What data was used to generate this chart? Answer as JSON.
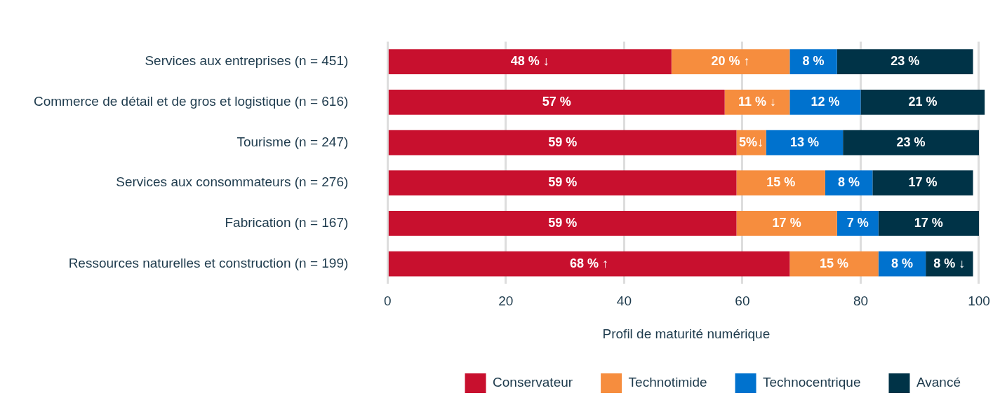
{
  "chart_data": {
    "type": "bar",
    "orientation": "horizontal",
    "stacked": true,
    "categories": [
      "Services aux entreprises (n = 451)",
      "Commerce de détail et de gros et logistique (n = 616)",
      "Tourisme (n = 247)",
      "Services aux consommateurs (n = 276)",
      "Fabrication (n = 167)",
      "Ressources naturelles et construction (n = 199)"
    ],
    "series": [
      {
        "name": "Conservateur",
        "color": "#c8102e",
        "values": [
          48,
          57,
          59,
          59,
          59,
          68
        ],
        "value_labels": [
          "48 % ↓",
          "57 %",
          "59 %",
          "59 %",
          "59 %",
          "68 % ↑"
        ]
      },
      {
        "name": "Technotimide",
        "color": "#f68d3e",
        "values": [
          20,
          11,
          5,
          15,
          17,
          15
        ],
        "value_labels": [
          "20 % ↑",
          "11 % ↓",
          "5%↓",
          "15 %",
          "17 %",
          "15 %"
        ]
      },
      {
        "name": "Technocentrique",
        "color": "#0072ce",
        "values": [
          8,
          12,
          13,
          8,
          7,
          8
        ],
        "value_labels": [
          "8 %",
          "12 %",
          "13 %",
          "8 %",
          "7 %",
          "8 %"
        ]
      },
      {
        "name": "Avancé",
        "color": "#003347",
        "values": [
          23,
          21,
          23,
          17,
          17,
          8
        ],
        "value_labels": [
          "23 %",
          "21 %",
          "23 %",
          "17 %",
          "17 %",
          "8 % ↓"
        ]
      }
    ],
    "xlabel": "Profil de maturité numérique",
    "xlim": [
      0,
      101
    ],
    "xticks": [
      0,
      20,
      40,
      60,
      80,
      100
    ],
    "grid": "x",
    "legend": "bottom"
  }
}
